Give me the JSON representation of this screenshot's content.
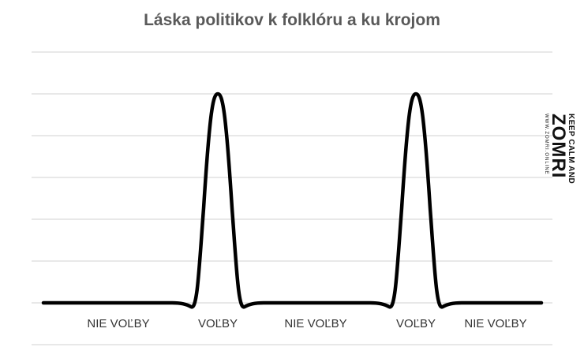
{
  "chart_data": {
    "type": "line",
    "title": "Láska politikov k folklóru a ku krojom",
    "xlabel": "",
    "ylabel": "",
    "categories": [
      "NIE VOĽBY",
      "VOĽBY",
      "NIE VOĽBY",
      "VOĽBY",
      "NIE VOĽBY"
    ],
    "values": [
      0,
      1,
      0,
      1,
      0
    ],
    "ylim": [
      0,
      1.25
    ],
    "grid": true,
    "legend": "none",
    "line_color": "#000000",
    "grid_color": "#d9d9d9"
  },
  "watermark": {
    "line1": "KEEP CALM AND",
    "line2": "ZOMRI",
    "line3": "WWW.ZOMRI.ONLINE"
  }
}
